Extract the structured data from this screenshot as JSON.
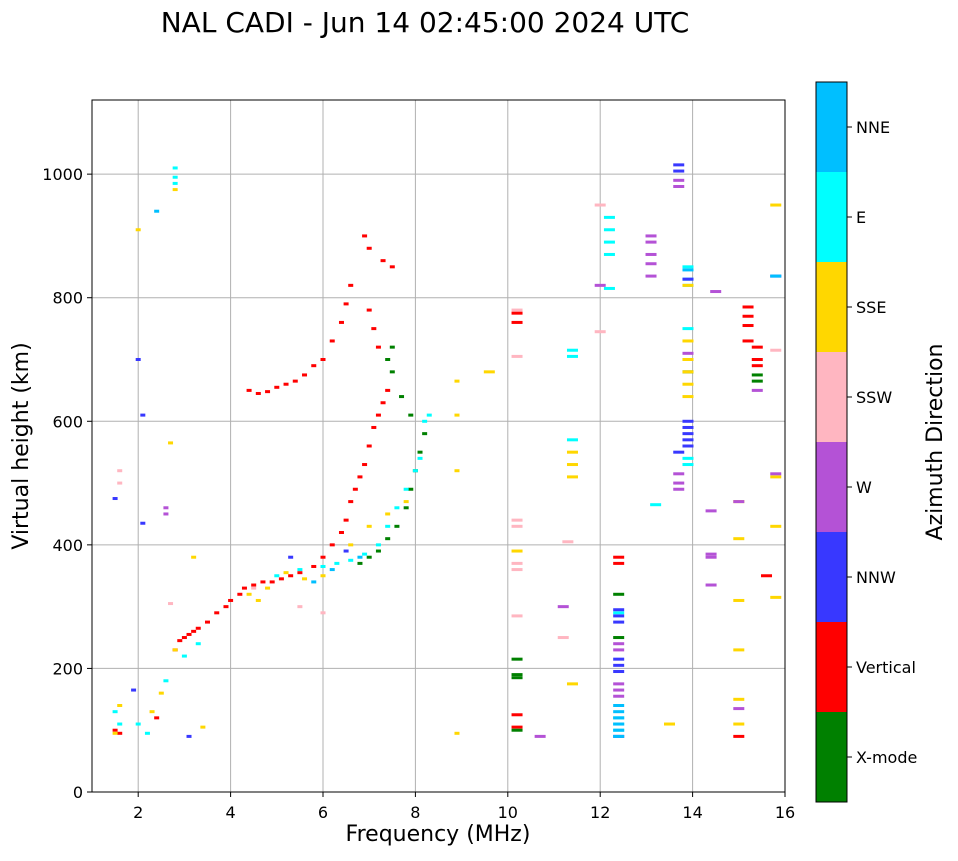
{
  "chart_data": {
    "type": "scatter",
    "title": "NAL CADI - Jun 14 02:45:00 2024 UTC",
    "xlabel": "Frequency (MHz)",
    "ylabel": "Virtual height (km)",
    "xlim": [
      1,
      16
    ],
    "ylim": [
      0,
      1120
    ],
    "xticks": [
      2,
      4,
      6,
      8,
      10,
      12,
      14,
      16
    ],
    "yticks": [
      0,
      200,
      400,
      600,
      800,
      1000
    ],
    "grid": true,
    "colorbar": {
      "title": "Azimuth Direction",
      "categories": [
        {
          "name": "NNE",
          "color": "#00bfff"
        },
        {
          "name": "E",
          "color": "#00ffff"
        },
        {
          "name": "SSE",
          "color": "#ffd700"
        },
        {
          "name": "SSW",
          "color": "#ffb6c1"
        },
        {
          "name": "W",
          "color": "#b452d6"
        },
        {
          "name": "NNW",
          "color": "#3838ff"
        },
        {
          "name": "Vertical",
          "color": "#ff0000"
        },
        {
          "name": "X-mode",
          "color": "#008000"
        }
      ]
    },
    "series": [
      {
        "name": "Vertical",
        "points": [
          [
            1.5,
            100
          ],
          [
            1.6,
            95
          ],
          [
            2.4,
            120
          ],
          [
            2.8,
            230
          ],
          [
            2.9,
            245
          ],
          [
            3.0,
            250
          ],
          [
            3.1,
            255
          ],
          [
            3.2,
            260
          ],
          [
            3.3,
            265
          ],
          [
            3.5,
            275
          ],
          [
            3.7,
            290
          ],
          [
            3.9,
            300
          ],
          [
            4.0,
            310
          ],
          [
            4.2,
            320
          ],
          [
            4.3,
            330
          ],
          [
            4.5,
            335
          ],
          [
            4.7,
            340
          ],
          [
            4.9,
            340
          ],
          [
            5.1,
            345
          ],
          [
            5.3,
            350
          ],
          [
            5.5,
            355
          ],
          [
            5.8,
            365
          ],
          [
            6.0,
            380
          ],
          [
            6.2,
            400
          ],
          [
            6.4,
            420
          ],
          [
            6.5,
            440
          ],
          [
            6.6,
            470
          ],
          [
            6.7,
            490
          ],
          [
            6.8,
            510
          ],
          [
            6.9,
            530
          ],
          [
            7.0,
            560
          ],
          [
            7.1,
            590
          ],
          [
            7.2,
            610
          ],
          [
            7.3,
            630
          ],
          [
            7.4,
            650
          ],
          [
            4.4,
            650
          ],
          [
            4.6,
            645
          ],
          [
            4.8,
            648
          ],
          [
            5.0,
            655
          ],
          [
            5.2,
            660
          ],
          [
            5.4,
            665
          ],
          [
            5.6,
            675
          ],
          [
            5.8,
            690
          ],
          [
            6.0,
            700
          ],
          [
            6.2,
            730
          ],
          [
            6.4,
            760
          ],
          [
            6.5,
            790
          ],
          [
            6.6,
            820
          ],
          [
            7.0,
            780
          ],
          [
            7.1,
            750
          ],
          [
            7.2,
            720
          ],
          [
            6.9,
            900
          ],
          [
            7.0,
            880
          ],
          [
            7.3,
            860
          ],
          [
            7.5,
            850
          ],
          [
            10.2,
            760
          ],
          [
            10.2,
            775
          ],
          [
            10.2,
            125
          ],
          [
            10.2,
            105
          ],
          [
            15.0,
            90
          ],
          [
            15.6,
            350
          ],
          [
            15.4,
            700
          ],
          [
            15.4,
            720
          ],
          [
            15.2,
            730
          ],
          [
            15.4,
            690
          ],
          [
            15.2,
            785
          ],
          [
            15.2,
            770
          ],
          [
            15.2,
            755
          ],
          [
            12.4,
            370
          ],
          [
            12.4,
            380
          ]
        ]
      },
      {
        "name": "X-mode",
        "points": [
          [
            6.8,
            370
          ],
          [
            7.0,
            380
          ],
          [
            7.2,
            390
          ],
          [
            7.4,
            410
          ],
          [
            7.6,
            430
          ],
          [
            7.8,
            460
          ],
          [
            7.9,
            490
          ],
          [
            8.0,
            520
          ],
          [
            8.1,
            550
          ],
          [
            8.2,
            580
          ],
          [
            7.9,
            610
          ],
          [
            7.7,
            640
          ],
          [
            7.5,
            680
          ],
          [
            7.4,
            700
          ],
          [
            7.5,
            720
          ],
          [
            10.2,
            215
          ],
          [
            10.2,
            190
          ],
          [
            10.2,
            185
          ],
          [
            10.2,
            100
          ],
          [
            12.4,
            250
          ],
          [
            12.4,
            320
          ],
          [
            13.9,
            680
          ],
          [
            15.4,
            675
          ],
          [
            15.4,
            665
          ]
        ]
      },
      {
        "name": "E",
        "points": [
          [
            1.5,
            130
          ],
          [
            1.6,
            110
          ],
          [
            2.0,
            110
          ],
          [
            2.2,
            95
          ],
          [
            2.6,
            180
          ],
          [
            2.8,
            1010
          ],
          [
            2.8,
            995
          ],
          [
            2.8,
            985
          ],
          [
            3.0,
            220
          ],
          [
            3.3,
            240
          ],
          [
            5.0,
            350
          ],
          [
            5.5,
            360
          ],
          [
            6.0,
            365
          ],
          [
            6.3,
            370
          ],
          [
            6.6,
            375
          ],
          [
            6.9,
            385
          ],
          [
            7.2,
            400
          ],
          [
            7.4,
            430
          ],
          [
            7.6,
            460
          ],
          [
            7.8,
            490
          ],
          [
            8.0,
            520
          ],
          [
            8.1,
            540
          ],
          [
            8.2,
            600
          ],
          [
            8.3,
            610
          ],
          [
            11.4,
            570
          ],
          [
            11.4,
            715
          ],
          [
            11.4,
            705
          ],
          [
            12.2,
            930
          ],
          [
            12.2,
            910
          ],
          [
            12.2,
            890
          ],
          [
            12.2,
            870
          ],
          [
            12.2,
            815
          ],
          [
            12.4,
            120
          ],
          [
            12.4,
            110
          ],
          [
            12.4,
            100
          ],
          [
            12.4,
            290
          ],
          [
            13.9,
            850
          ],
          [
            13.9,
            830
          ],
          [
            13.9,
            820
          ],
          [
            13.9,
            750
          ],
          [
            13.9,
            700
          ],
          [
            13.9,
            540
          ],
          [
            13.9,
            530
          ],
          [
            13.2,
            465
          ]
        ]
      },
      {
        "name": "SSE",
        "points": [
          [
            1.5,
            95
          ],
          [
            1.6,
            140
          ],
          [
            2.3,
            130
          ],
          [
            2.5,
            160
          ],
          [
            2.8,
            230
          ],
          [
            2.8,
            975
          ],
          [
            3.2,
            380
          ],
          [
            3.4,
            105
          ],
          [
            4.4,
            320
          ],
          [
            4.6,
            310
          ],
          [
            4.8,
            330
          ],
          [
            5.2,
            355
          ],
          [
            5.6,
            345
          ],
          [
            6.0,
            350
          ],
          [
            6.6,
            400
          ],
          [
            7.0,
            430
          ],
          [
            7.4,
            450
          ],
          [
            7.8,
            470
          ],
          [
            8.9,
            665
          ],
          [
            8.9,
            610
          ],
          [
            8.9,
            520
          ],
          [
            8.9,
            95
          ],
          [
            10.2,
            390
          ],
          [
            11.4,
            550
          ],
          [
            11.4,
            530
          ],
          [
            11.4,
            510
          ],
          [
            11.4,
            175
          ],
          [
            13.5,
            110
          ],
          [
            13.9,
            700
          ],
          [
            13.9,
            680
          ],
          [
            13.9,
            660
          ],
          [
            13.9,
            640
          ],
          [
            13.9,
            730
          ],
          [
            13.9,
            820
          ],
          [
            15.0,
            470
          ],
          [
            15.0,
            410
          ],
          [
            15.0,
            310
          ],
          [
            15.0,
            230
          ],
          [
            15.0,
            150
          ],
          [
            15.0,
            110
          ],
          [
            15.8,
            950
          ],
          [
            15.8,
            510
          ],
          [
            15.8,
            430
          ],
          [
            15.8,
            315
          ],
          [
            2.0,
            910
          ],
          [
            2.7,
            565
          ],
          [
            9.6,
            680
          ]
        ]
      },
      {
        "name": "SSW",
        "points": [
          [
            1.6,
            520
          ],
          [
            1.6,
            500
          ],
          [
            2.7,
            305
          ],
          [
            4.5,
            330
          ],
          [
            5.5,
            300
          ],
          [
            6.0,
            290
          ],
          [
            10.2,
            440
          ],
          [
            10.2,
            430
          ],
          [
            10.2,
            370
          ],
          [
            10.2,
            360
          ],
          [
            10.2,
            285
          ],
          [
            10.2,
            780
          ],
          [
            10.2,
            705
          ],
          [
            11.2,
            250
          ],
          [
            11.3,
            405
          ],
          [
            12.0,
            950
          ],
          [
            12.0,
            745
          ],
          [
            15.8,
            715
          ]
        ]
      },
      {
        "name": "W",
        "points": [
          [
            2.6,
            460
          ],
          [
            2.6,
            450
          ],
          [
            10.7,
            90
          ],
          [
            11.2,
            300
          ],
          [
            12.4,
            240
          ],
          [
            12.4,
            230
          ],
          [
            12.4,
            175
          ],
          [
            12.4,
            165
          ],
          [
            12.4,
            155
          ],
          [
            13.1,
            900
          ],
          [
            13.1,
            890
          ],
          [
            13.1,
            870
          ],
          [
            13.1,
            855
          ],
          [
            13.1,
            835
          ],
          [
            13.7,
            515
          ],
          [
            13.7,
            500
          ],
          [
            13.7,
            490
          ],
          [
            13.7,
            990
          ],
          [
            13.7,
            980
          ],
          [
            14.4,
            455
          ],
          [
            14.4,
            385
          ],
          [
            14.4,
            380
          ],
          [
            14.4,
            335
          ],
          [
            15.0,
            470
          ],
          [
            15.0,
            135
          ],
          [
            15.4,
            650
          ],
          [
            15.8,
            515
          ],
          [
            14.5,
            810
          ],
          [
            13.9,
            710
          ],
          [
            12.0,
            820
          ]
        ]
      },
      {
        "name": "NNW",
        "points": [
          [
            1.5,
            475
          ],
          [
            1.9,
            165
          ],
          [
            2.0,
            700
          ],
          [
            2.1,
            610
          ],
          [
            2.1,
            435
          ],
          [
            3.1,
            90
          ],
          [
            5.3,
            380
          ],
          [
            6.5,
            390
          ],
          [
            13.7,
            1015
          ],
          [
            13.7,
            1005
          ],
          [
            13.7,
            550
          ],
          [
            13.9,
            600
          ],
          [
            13.9,
            590
          ],
          [
            13.9,
            580
          ],
          [
            13.9,
            570
          ],
          [
            13.9,
            560
          ],
          [
            12.4,
            295
          ],
          [
            12.4,
            285
          ],
          [
            12.4,
            275
          ],
          [
            12.4,
            215
          ],
          [
            12.4,
            205
          ],
          [
            12.4,
            195
          ],
          [
            12.4,
            90
          ],
          [
            15.8,
            835
          ],
          [
            13.9,
            830
          ]
        ]
      },
      {
        "name": "NNE",
        "points": [
          [
            2.4,
            940
          ],
          [
            12.4,
            140
          ],
          [
            12.4,
            130
          ],
          [
            12.4,
            120
          ],
          [
            12.4,
            110
          ],
          [
            12.4,
            100
          ],
          [
            12.4,
            90
          ],
          [
            5.8,
            340
          ],
          [
            6.2,
            360
          ],
          [
            6.8,
            380
          ],
          [
            13.9,
            845
          ],
          [
            15.8,
            835
          ]
        ]
      }
    ]
  }
}
